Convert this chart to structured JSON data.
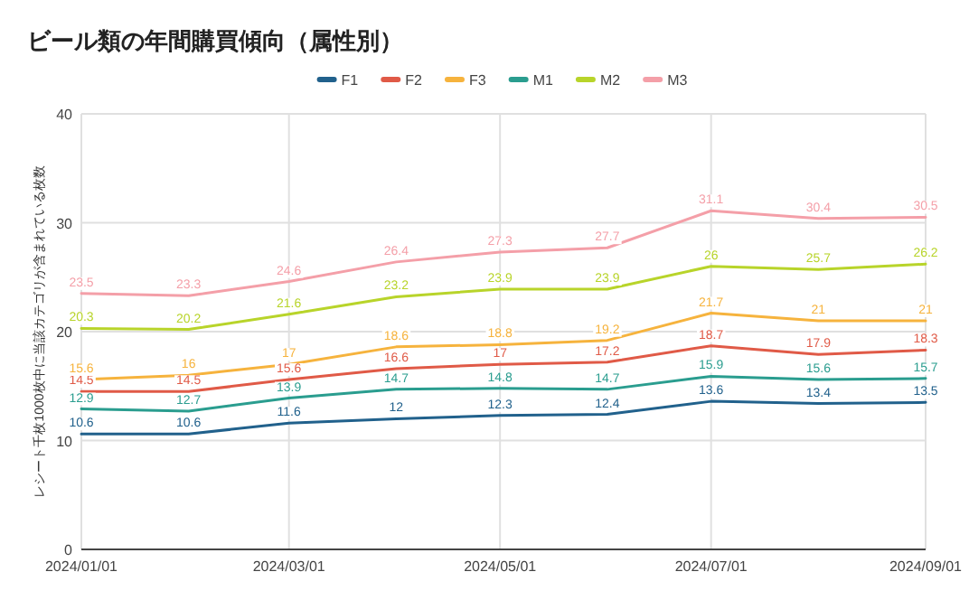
{
  "chart_data": {
    "type": "line",
    "title": "ビール類の年間購買傾向（属性別）",
    "ylabel": "レシート千枚1000枚中に当該カテゴリが含まれている枚数",
    "x": [
      "2024-01-01",
      "2024-02-01",
      "2024-03-01",
      "2024-04-01",
      "2024-05-01",
      "2024-06-01",
      "2024-07-01",
      "2024-08-01",
      "2024-09-01"
    ],
    "xlim": [
      "2024-01-01",
      "2024-09-01"
    ],
    "xticks": [
      {
        "value": "2024-01-01",
        "label": "2024/01/01"
      },
      {
        "value": "2024-03-01",
        "label": "2024/03/01"
      },
      {
        "value": "2024-05-01",
        "label": "2024/05/01"
      },
      {
        "value": "2024-07-01",
        "label": "2024/07/01"
      },
      {
        "value": "2024-09-01",
        "label": "2024/09/01"
      }
    ],
    "ylim": [
      0,
      40
    ],
    "yticks": [
      0,
      10,
      20,
      30,
      40
    ],
    "grid": true,
    "legend": "top",
    "data_labels": true,
    "marker": "none",
    "series": [
      {
        "name": "F1",
        "color": "#21618c",
        "values": [
          10.6,
          10.6,
          11.6,
          12,
          12.3,
          12.4,
          13.6,
          13.4,
          13.5
        ]
      },
      {
        "name": "F2",
        "color": "#e05a47",
        "values": [
          14.5,
          14.5,
          15.6,
          16.6,
          17,
          17.2,
          18.7,
          17.9,
          18.3
        ]
      },
      {
        "name": "F3",
        "color": "#f6b33d",
        "values": [
          15.6,
          16,
          17,
          18.6,
          18.8,
          19.2,
          21.7,
          21,
          21
        ]
      },
      {
        "name": "M1",
        "color": "#2a9d8f",
        "values": [
          12.9,
          12.7,
          13.9,
          14.7,
          14.8,
          14.7,
          15.9,
          15.6,
          15.7
        ]
      },
      {
        "name": "M2",
        "color": "#b8d42a",
        "values": [
          20.3,
          20.2,
          21.6,
          23.2,
          23.9,
          23.9,
          26,
          25.7,
          26.2
        ]
      },
      {
        "name": "M3",
        "color": "#f49fa8",
        "values": [
          23.5,
          23.3,
          24.6,
          26.4,
          27.3,
          27.7,
          31.1,
          30.4,
          30.5
        ]
      }
    ]
  }
}
